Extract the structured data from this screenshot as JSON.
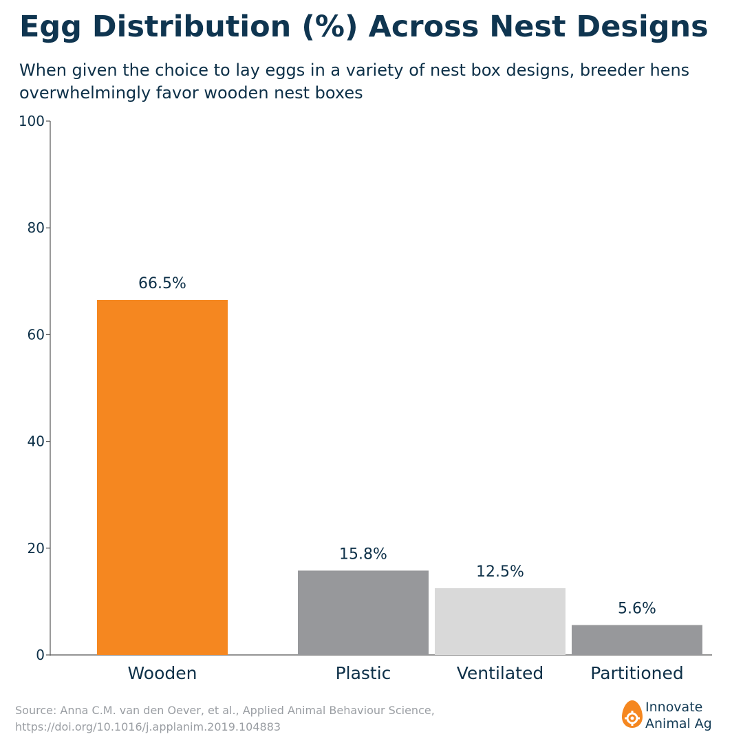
{
  "title": "Egg Distribution (%) Across Nest Designs",
  "subtitle": "When given the choice to lay eggs in a variety of nest box designs, breeder hens overwhelmingly favor wooden nest boxes",
  "source": "Source: Anna C.M. van den Oever, et al., Applied Animal Behaviour Science, https://doi.org/10.1016/j.applanim.2019.104883",
  "logo": {
    "line1": "Innovate",
    "line2": "Animal Ag",
    "icon": "egg-gear-icon"
  },
  "colors": {
    "wooden": "#f58720",
    "plastic": "#97989b",
    "ventilated": "#d9d9d9",
    "partitioned": "#97989b",
    "text": "#0d3048",
    "source": "#9a9ea3",
    "axis": "#555555"
  },
  "chart_data": {
    "type": "bar",
    "title": "Egg Distribution (%) Across Nest Designs",
    "xlabel": "",
    "ylabel": "",
    "categories": [
      "Wooden",
      "Plastic",
      "Ventilated",
      "Partitioned"
    ],
    "values": [
      66.5,
      15.8,
      12.5,
      5.6
    ],
    "value_labels": [
      "66.5%",
      "15.8%",
      "12.5%",
      "5.6%"
    ],
    "bar_colors": [
      "#f58720",
      "#97989b",
      "#d9d9d9",
      "#97989b"
    ],
    "ylim": [
      0,
      100
    ],
    "yticks": [
      0,
      20,
      40,
      60,
      80,
      100
    ],
    "grid": false,
    "legend": "none"
  }
}
